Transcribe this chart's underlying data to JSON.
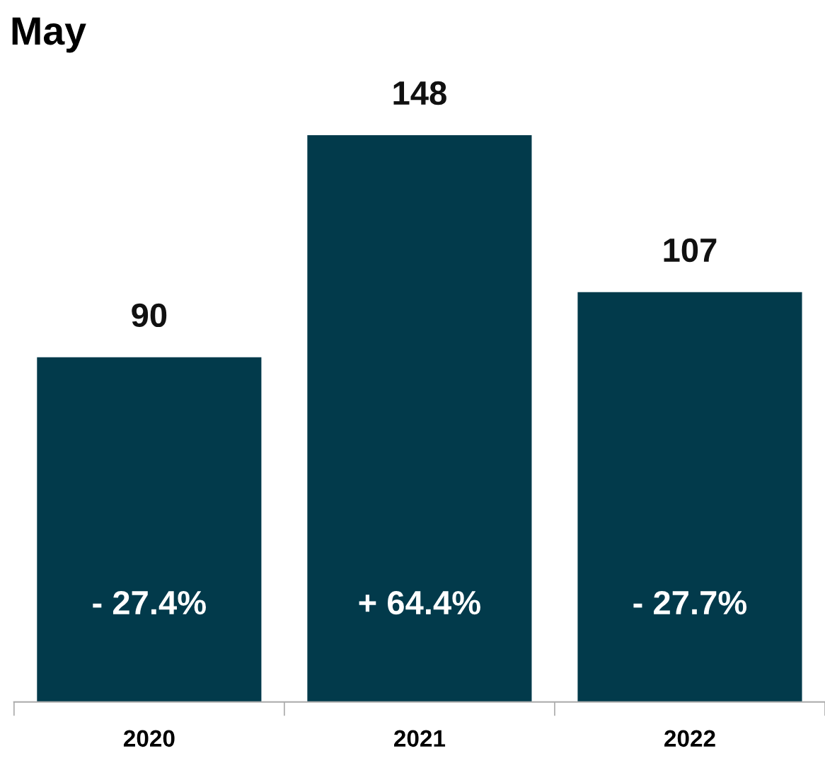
{
  "chart_data": {
    "type": "bar",
    "title": "May",
    "categories": [
      "2020",
      "2021",
      "2022"
    ],
    "values": [
      90,
      148,
      107
    ],
    "color": "#023a4b",
    "data_labels": true,
    "grid": false,
    "legend": false,
    "tick_labels": "x",
    "annotations": [
      "- 27.4%",
      "+ 64.4%",
      "- 27.7%"
    ]
  }
}
